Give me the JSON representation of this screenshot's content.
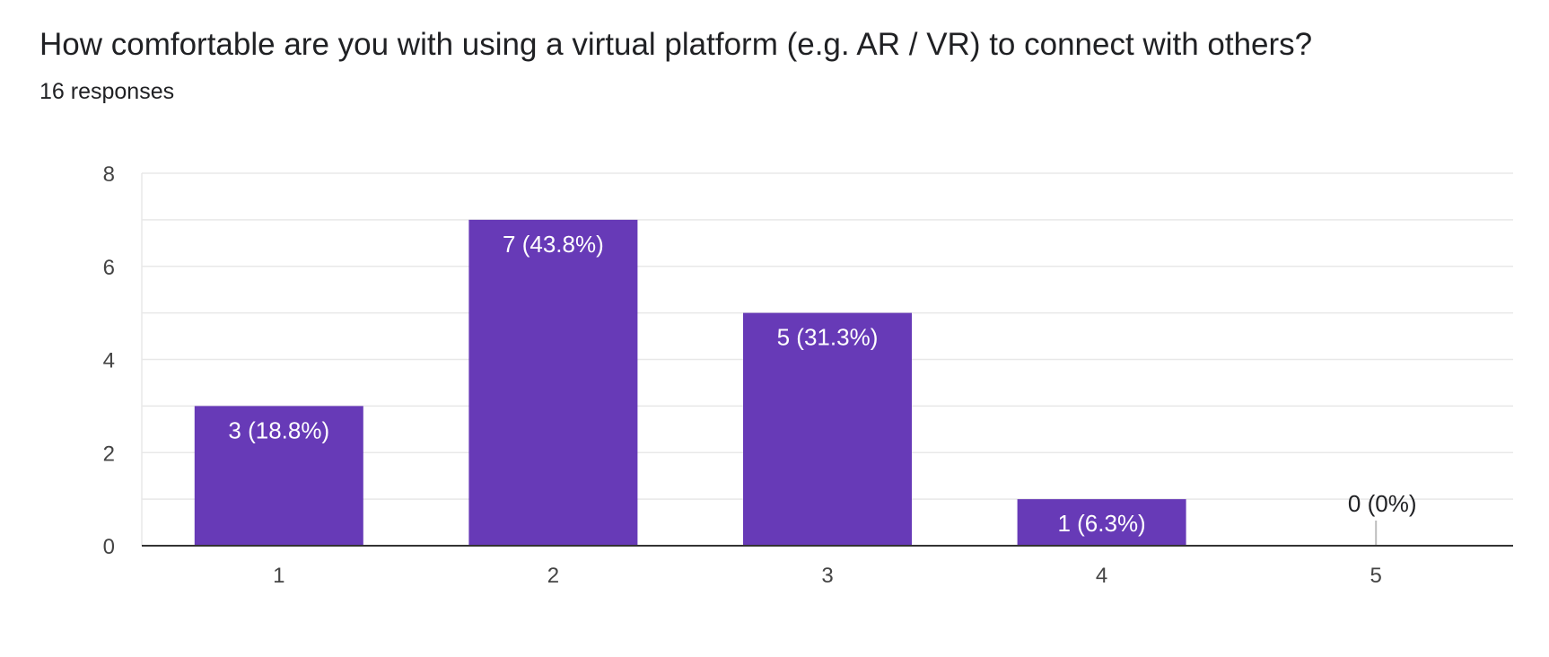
{
  "question": {
    "title": "How comfortable are you with using a virtual platform (e.g. AR / VR) to connect with others?",
    "responses": "16 responses"
  },
  "colors": {
    "bar": "#673ab7",
    "grid": "#e8e8e8",
    "axis": "#333333",
    "label_inside": "#ffffff",
    "label_outside": "#202124",
    "zero_marker": "#bdbdbd"
  },
  "chart_data": {
    "type": "bar",
    "title": "How comfortable are you with using a virtual platform (e.g. AR / VR) to connect with others?",
    "xlabel": "",
    "ylabel": "",
    "categories": [
      "1",
      "2",
      "3",
      "4",
      "5"
    ],
    "values": [
      3,
      7,
      5,
      1,
      0
    ],
    "data_labels": [
      "3 (18.8%)",
      "7 (43.8%)",
      "5 (31.3%)",
      "1 (6.3%)",
      "0 (0%)"
    ],
    "ylim": [
      0,
      8
    ],
    "yticks": [
      "0",
      "2",
      "4",
      "6",
      "8"
    ],
    "grid": true
  }
}
